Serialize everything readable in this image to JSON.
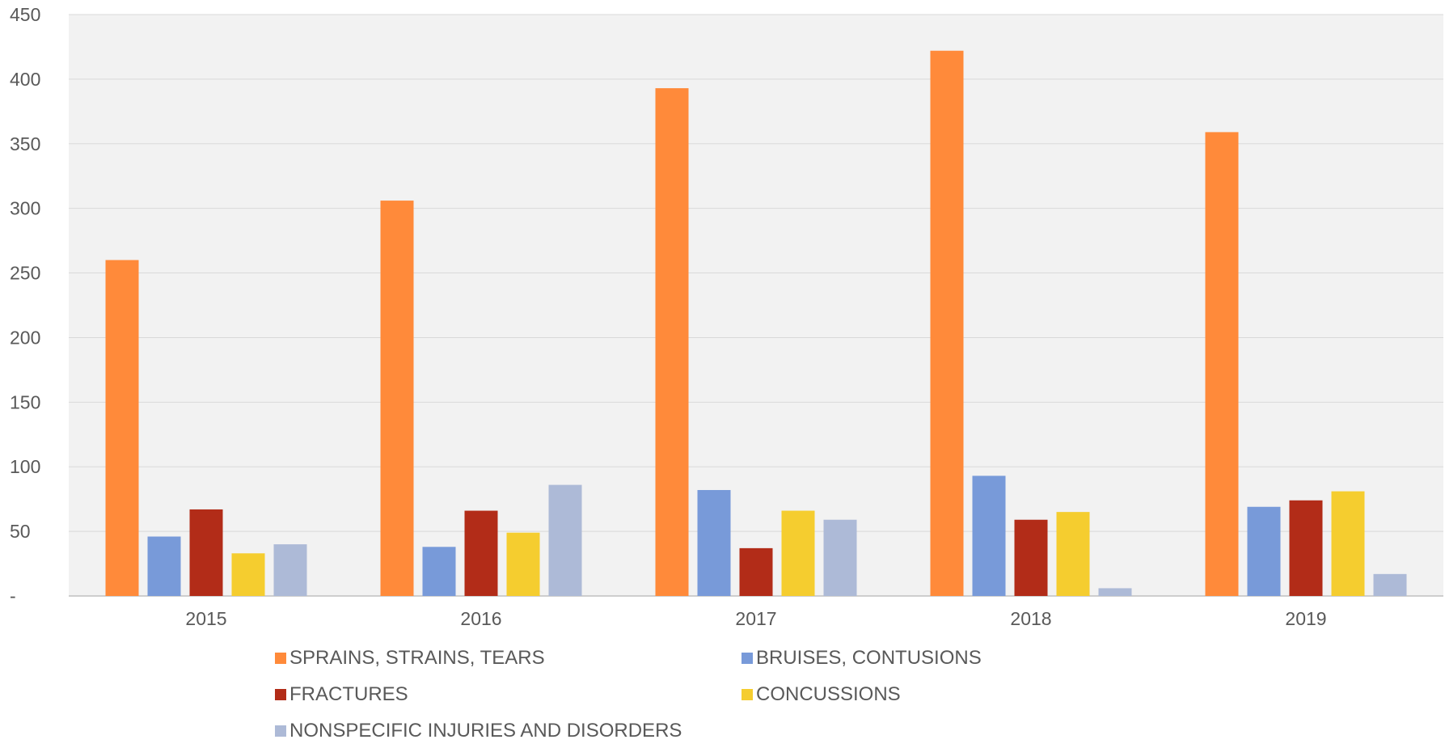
{
  "chart_data": {
    "type": "bar",
    "categories": [
      "2015",
      "2016",
      "2017",
      "2018",
      "2019"
    ],
    "series": [
      {
        "name": "SPRAINS, STRAINS, TEARS",
        "color": "#FF8A3A",
        "values": [
          260,
          306,
          393,
          422,
          359
        ]
      },
      {
        "name": "BRUISES, CONTUSIONS",
        "color": "#789AD9",
        "values": [
          46,
          38,
          82,
          93,
          69
        ]
      },
      {
        "name": "FRACTURES",
        "color": "#B22C18",
        "values": [
          67,
          66,
          37,
          59,
          74
        ]
      },
      {
        "name": "CONCUSSIONS",
        "color": "#F5CD2F",
        "values": [
          33,
          49,
          66,
          65,
          81
        ]
      },
      {
        "name": "NONSPECIFIC INJURIES AND DISORDERS",
        "color": "#ADBAD7",
        "values": [
          40,
          86,
          59,
          6,
          17
        ]
      }
    ],
    "yticks": [
      0,
      50,
      100,
      150,
      200,
      250,
      300,
      350,
      400,
      450
    ],
    "ytick_labels": [
      "-",
      "50",
      "100",
      "150",
      "200",
      "250",
      "300",
      "350",
      "400",
      "450"
    ],
    "ylim": [
      0,
      450
    ],
    "grid": true,
    "legend_position": "bottom",
    "plot_background": "#F2F2F2",
    "title": "",
    "xlabel": "",
    "ylabel": ""
  }
}
